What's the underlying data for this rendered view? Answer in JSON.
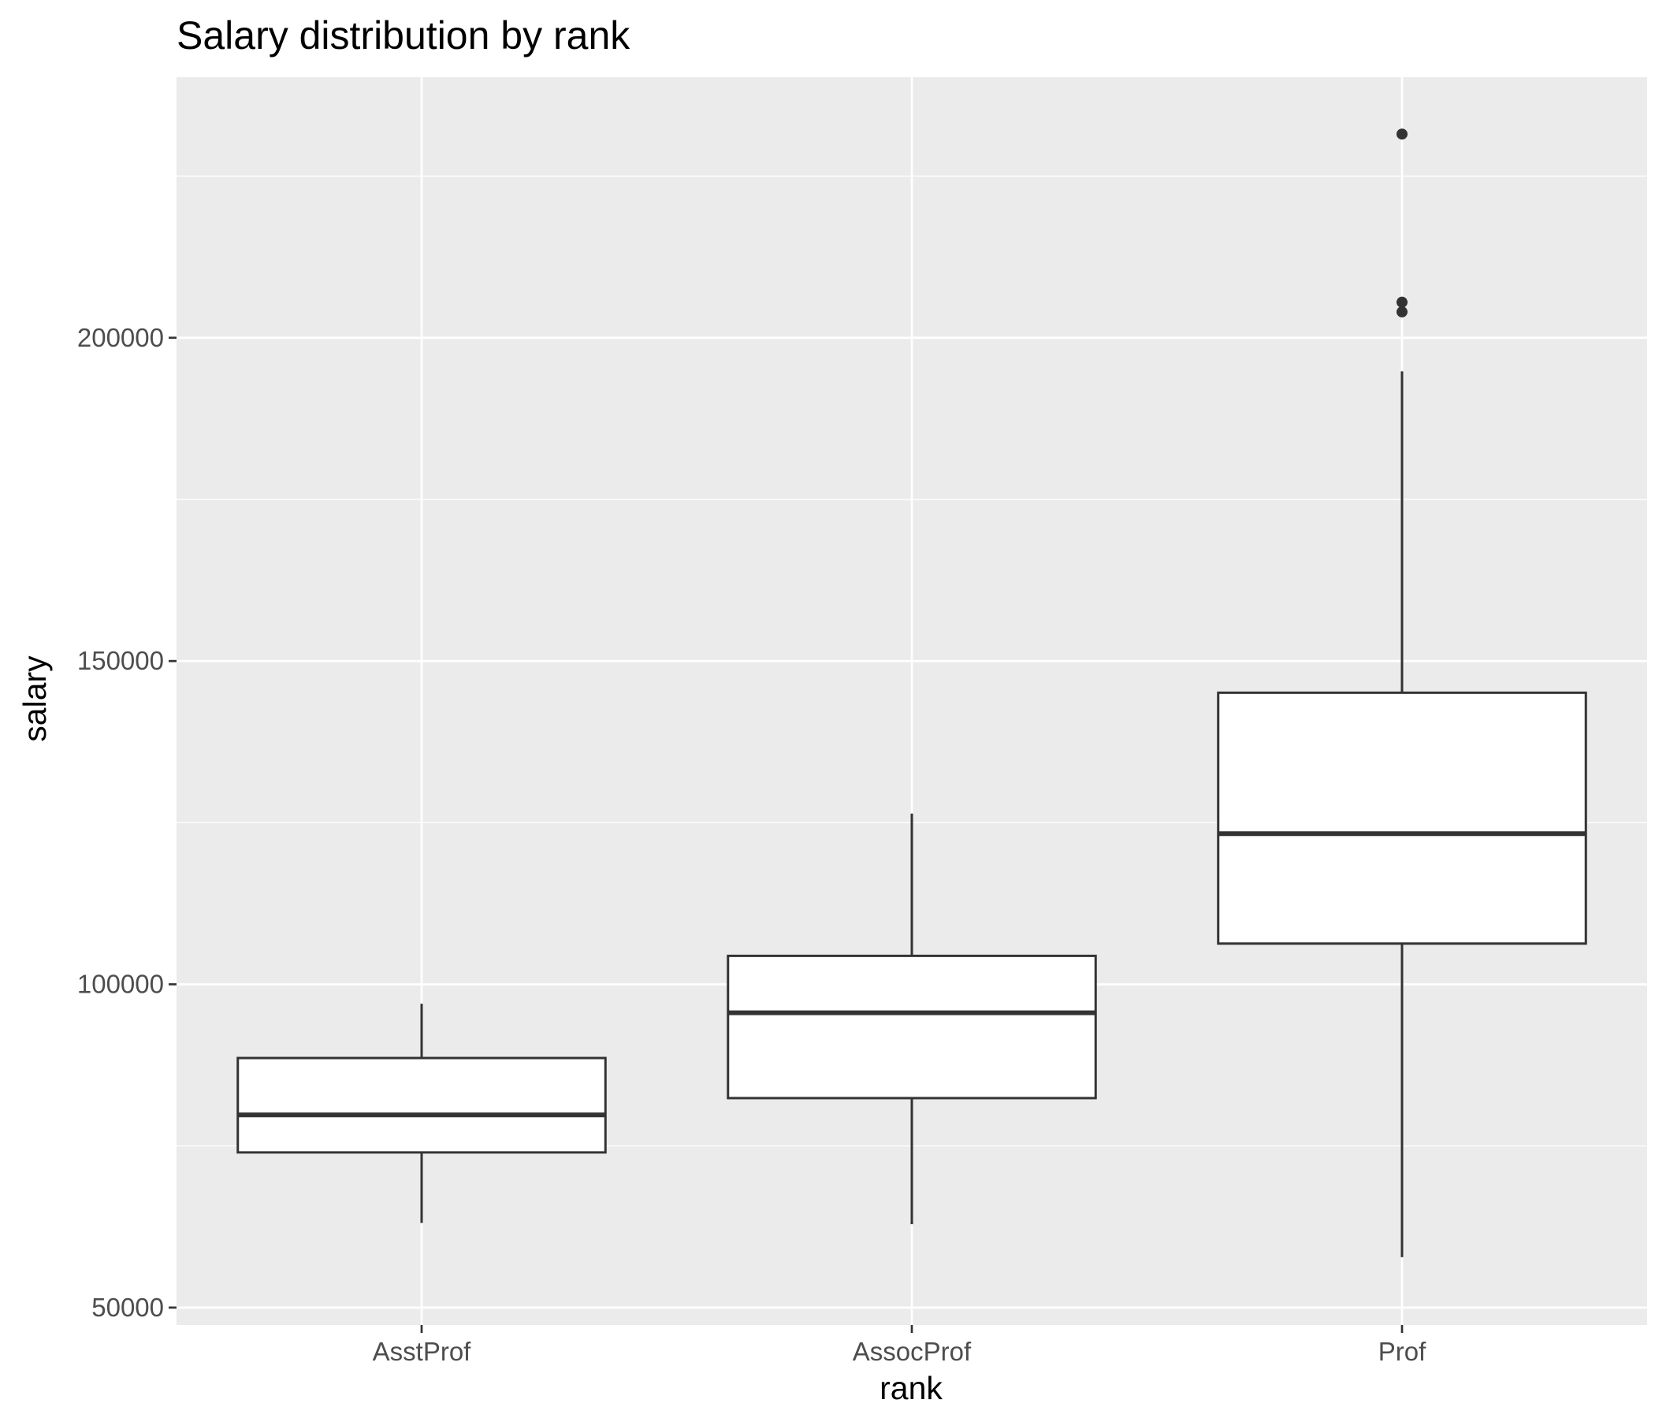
{
  "chart_data": {
    "type": "boxplot",
    "title": "Salary distribution by rank",
    "xlabel": "rank",
    "ylabel": "salary",
    "categories": [
      "AsstProf",
      "AssocProf",
      "Prof"
    ],
    "ylim": [
      47300,
      240300
    ],
    "y_ticks": [
      50000,
      100000,
      150000,
      200000
    ],
    "y_tick_labels": [
      "50000",
      "100000",
      "150000",
      "200000"
    ],
    "grid": true,
    "boxes": [
      {
        "category": "AsstProf",
        "whisker_low": 63100,
        "q1": 74000,
        "median": 79800,
        "q3": 88600,
        "whisker_high": 97000,
        "outliers": []
      },
      {
        "category": "AssocProf",
        "whisker_low": 62900,
        "q1": 82400,
        "median": 95600,
        "q3": 104400,
        "whisker_high": 126400,
        "outliers": []
      },
      {
        "category": "Prof",
        "whisker_low": 57800,
        "q1": 106300,
        "median": 123300,
        "q3": 145100,
        "whisker_high": 194800,
        "outliers": [
          231500,
          205500,
          204000
        ]
      }
    ],
    "colors": {
      "panel": "#ebebeb",
      "grid": "#ffffff",
      "box_line": "#333333",
      "box_fill": "#ffffff",
      "outlier": "#333333"
    }
  }
}
